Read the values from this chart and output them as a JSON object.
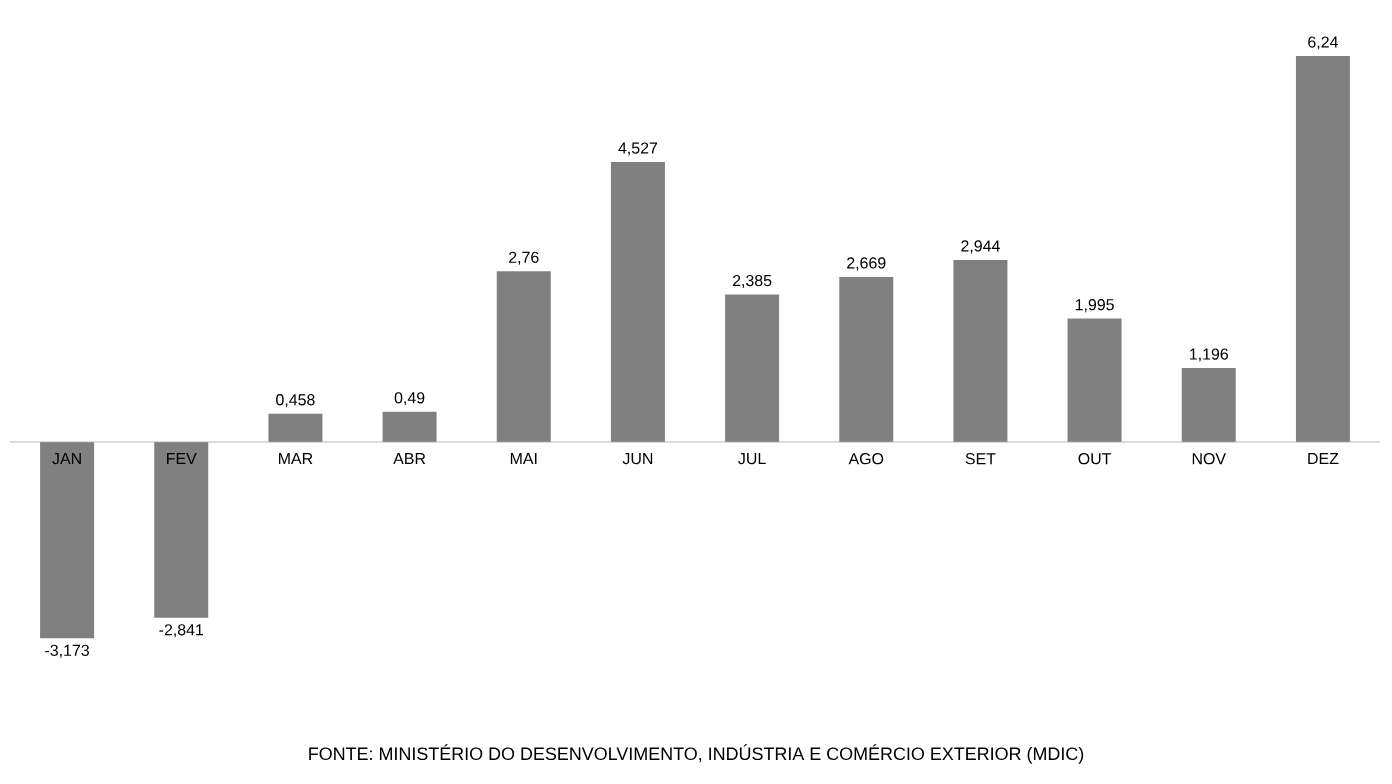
{
  "chart_data": {
    "type": "bar",
    "categories": [
      "JAN",
      "FEV",
      "MAR",
      "ABR",
      "MAI",
      "JUN",
      "JUL",
      "AGO",
      "SET",
      "OUT",
      "NOV",
      "DEZ"
    ],
    "values": [
      -3.173,
      -2.841,
      0.458,
      0.49,
      2.76,
      4.527,
      2.385,
      2.669,
      2.944,
      1.995,
      1.196,
      6.24
    ],
    "value_labels": [
      "-3,173",
      "-2,841",
      "0,458",
      "0,49",
      "2,76",
      "4,527",
      "2,385",
      "2,669",
      "2,944",
      "1,995",
      "1,196",
      "6,24"
    ],
    "color": "#808080",
    "annotations": [
      "FONTE: MINISTÉRIO DO DESENVOLVIMENTO, INDÚSTRIA E COMÉRCIO EXTERIOR (MDIC)"
    ]
  }
}
